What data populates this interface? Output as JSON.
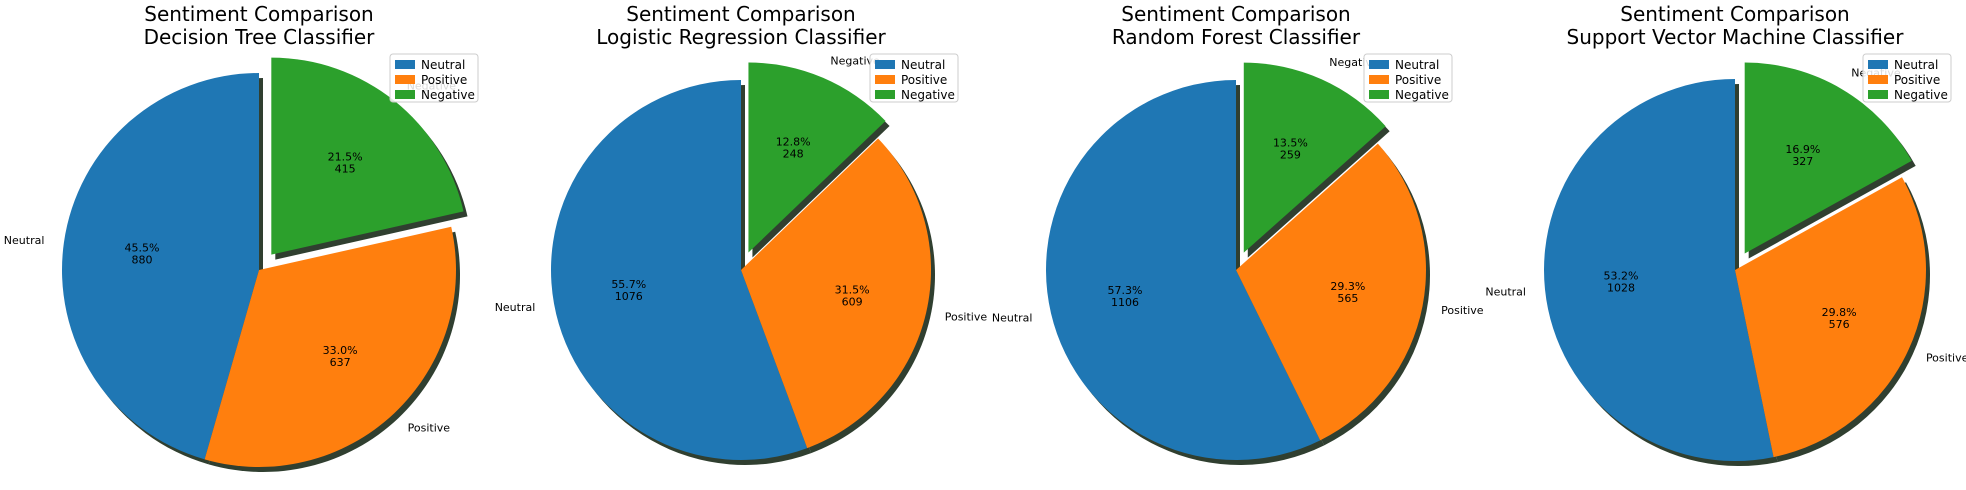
{
  "chart_data": [
    {
      "type": "pie",
      "title": [
        "Sentiment Comparison",
        "Decision Tree Classifier"
      ],
      "categories": [
        "Neutral",
        "Positive",
        "Negative"
      ],
      "values": [
        880,
        637,
        415
      ],
      "percent_labels": [
        "45.5%",
        "33.0%",
        "21.5%"
      ],
      "count_labels": [
        "880",
        "637",
        "415"
      ],
      "legend": [
        "Neutral",
        "Positive",
        "Negative"
      ],
      "legend_position": "top-right",
      "exploded": "Negative",
      "shadow": true
    },
    {
      "type": "pie",
      "title": [
        "Sentiment Comparison",
        "Logistic Regression Classifier"
      ],
      "categories": [
        "Neutral",
        "Positive",
        "Negative"
      ],
      "values": [
        1076,
        609,
        248
      ],
      "percent_labels": [
        "55.7%",
        "31.5%",
        "12.8%"
      ],
      "count_labels": [
        "1076",
        "609",
        "248"
      ],
      "legend": [
        "Neutral",
        "Positive",
        "Negative"
      ],
      "legend_position": "top-right",
      "exploded": "Negative",
      "shadow": true
    },
    {
      "type": "pie",
      "title": [
        "Sentiment Comparison",
        "Random Forest Classifier"
      ],
      "categories": [
        "Neutral",
        "Positive",
        "Negative"
      ],
      "values": [
        1106,
        565,
        259
      ],
      "percent_labels": [
        "57.3%",
        "29.3%",
        "13.5%"
      ],
      "count_labels": [
        "1106",
        "565",
        "259"
      ],
      "legend": [
        "Neutral",
        "Positive",
        "Negative"
      ],
      "legend_position": "top-right",
      "exploded": "Negative",
      "shadow": true
    },
    {
      "type": "pie",
      "title": [
        "Sentiment Comparison",
        "Support Vector Machine Classifier"
      ],
      "categories": [
        "Neutral",
        "Positive",
        "Negative"
      ],
      "values": [
        1028,
        576,
        327
      ],
      "percent_labels": [
        "53.2%",
        "29.8%",
        "16.9%"
      ],
      "count_labels": [
        "1028",
        "576",
        "327"
      ],
      "legend": [
        "Neutral",
        "Positive",
        "Negative"
      ],
      "legend_position": "top-right",
      "exploded": "Negative",
      "shadow": true
    }
  ],
  "colors": {
    "Neutral": "#1f77b4",
    "Positive": "#ff7f0e",
    "Negative": "#2ca02c",
    "shadow": "#1a2a1a"
  }
}
